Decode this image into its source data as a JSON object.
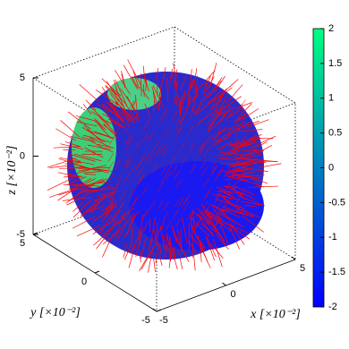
{
  "chart_data": {
    "type": "surface3d",
    "xlabel": "x [×10⁻²]",
    "ylabel": "y [×10⁻²]",
    "zlabel": "z [×10⁻²]",
    "xlim": [
      -5,
      5
    ],
    "xticks": [
      -5,
      0,
      5
    ],
    "ylim": [
      -5,
      5
    ],
    "yticks": [
      -5,
      0,
      5
    ],
    "zlim": [
      -5,
      5
    ],
    "zticks": [
      -5,
      0,
      5
    ],
    "clim": [
      -2,
      2
    ],
    "cticks": [
      -2,
      -1.5,
      -1,
      -0.5,
      0,
      0.5,
      1,
      1.5,
      2
    ],
    "colormap": [
      "#0000ff",
      "#00ff80"
    ],
    "quiver_color": "#ff0000",
    "grid": false
  }
}
